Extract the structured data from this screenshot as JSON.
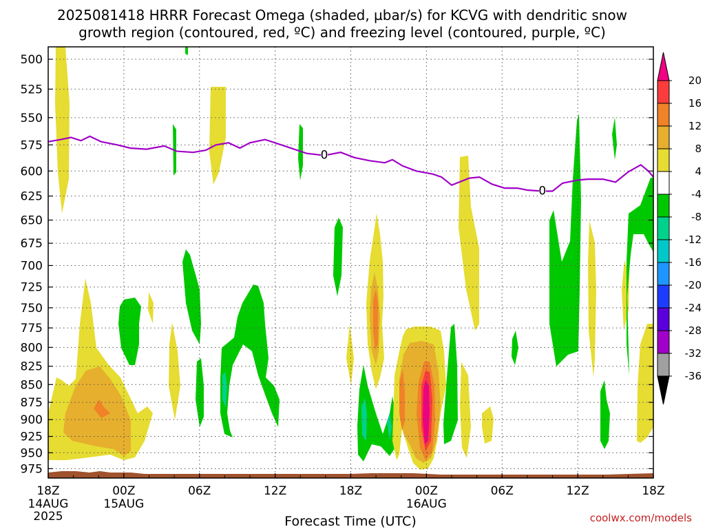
{
  "title": {
    "line1": "2025081418 HRRR Forecast Omega (shaded, µbar/s) for KCVG with dendritic snow",
    "line2": "growth region (contoured, red, ºC) and freezing level (contoured, purple, ºC)"
  },
  "credit": "coolwx.com/models",
  "colors": {
    "green": "#00c800",
    "yellow": "#e6dc32",
    "orange_light": "#e6af2d",
    "orange": "#f08228",
    "red": "#fa3c3c",
    "magenta": "#f00082",
    "teal": "#00d28c",
    "purple_line": "#a000c8",
    "ground": "#a0522d"
  },
  "chart_data": {
    "type": "heatmap",
    "xlabel": "Forecast Time (UTC)",
    "x_ticks": [
      {
        "hour": 0,
        "label": "18Z",
        "sub1": "14AUG",
        "sub2": "2025"
      },
      {
        "hour": 6,
        "label": "00Z",
        "sub1": "15AUG",
        "sub2": ""
      },
      {
        "hour": 12,
        "label": "06Z",
        "sub1": "",
        "sub2": ""
      },
      {
        "hour": 18,
        "label": "12Z",
        "sub1": "",
        "sub2": ""
      },
      {
        "hour": 24,
        "label": "18Z",
        "sub1": "",
        "sub2": ""
      },
      {
        "hour": 30,
        "label": "00Z",
        "sub1": "16AUG",
        "sub2": ""
      },
      {
        "hour": 36,
        "label": "06Z",
        "sub1": "",
        "sub2": ""
      },
      {
        "hour": 42,
        "label": "12Z",
        "sub1": "",
        "sub2": ""
      },
      {
        "hour": 48,
        "label": "18Z",
        "sub1": "",
        "sub2": ""
      }
    ],
    "x_range_hours": [
      0,
      48
    ],
    "y_ticks_mb": [
      500,
      525,
      550,
      575,
      600,
      625,
      650,
      675,
      700,
      725,
      750,
      775,
      800,
      825,
      850,
      875,
      900,
      925,
      950,
      975
    ],
    "y_range_mb": [
      490,
      990
    ],
    "y_scale": "log-pressure",
    "grid": true,
    "colorbar": {
      "labels": [
        "20",
        "16",
        "12",
        "8",
        "4",
        "-4",
        "-8",
        "-12",
        "-16",
        "-20",
        "-24",
        "-28",
        "-32",
        "-36"
      ],
      "colors": [
        "#f00082",
        "#fa3c3c",
        "#f08228",
        "#e6af2d",
        "#e6dc32",
        "#ffffff",
        "#00c800",
        "#00d28c",
        "#00c8c8",
        "#1e96ff",
        "#1e3cff",
        "#5a00dc",
        "#a000c8",
        "#a0a0a0",
        "#000000"
      ]
    },
    "freezing_level": {
      "label": "0",
      "label_hours": [
        21.9,
        39.2
      ],
      "points": [
        [
          0,
          572
        ],
        [
          1,
          570
        ],
        [
          1.8,
          568
        ],
        [
          2.6,
          571
        ],
        [
          3.3,
          567
        ],
        [
          4.2,
          572
        ],
        [
          5.5,
          575
        ],
        [
          6.5,
          578
        ],
        [
          7.8,
          579
        ],
        [
          9.2,
          576
        ],
        [
          10.2,
          581
        ],
        [
          11.5,
          582
        ],
        [
          12.5,
          580
        ],
        [
          13.3,
          575
        ],
        [
          14.3,
          573
        ],
        [
          15.2,
          578
        ],
        [
          16.0,
          573
        ],
        [
          17.2,
          570
        ],
        [
          18.5,
          575
        ],
        [
          19.5,
          579
        ],
        [
          20.5,
          583
        ],
        [
          21.9,
          585
        ],
        [
          23.2,
          582
        ],
        [
          24.3,
          587
        ],
        [
          25.5,
          590
        ],
        [
          26.7,
          592
        ],
        [
          27.3,
          589
        ],
        [
          28.1,
          595
        ],
        [
          29.2,
          600
        ],
        [
          30.5,
          603
        ],
        [
          31.2,
          606
        ],
        [
          32.0,
          614
        ],
        [
          32.8,
          610
        ],
        [
          33.4,
          607
        ],
        [
          34.2,
          606
        ],
        [
          35.2,
          613
        ],
        [
          36.2,
          617
        ],
        [
          37.2,
          617
        ],
        [
          38.0,
          619
        ],
        [
          39.2,
          620
        ],
        [
          40.0,
          620
        ],
        [
          40.8,
          612
        ],
        [
          42.0,
          609
        ],
        [
          42.8,
          608
        ],
        [
          44.0,
          608
        ],
        [
          45.0,
          611
        ],
        [
          46.0,
          601
        ],
        [
          47.0,
          594
        ],
        [
          47.6,
          600
        ],
        [
          48.0,
          606
        ]
      ]
    }
  }
}
